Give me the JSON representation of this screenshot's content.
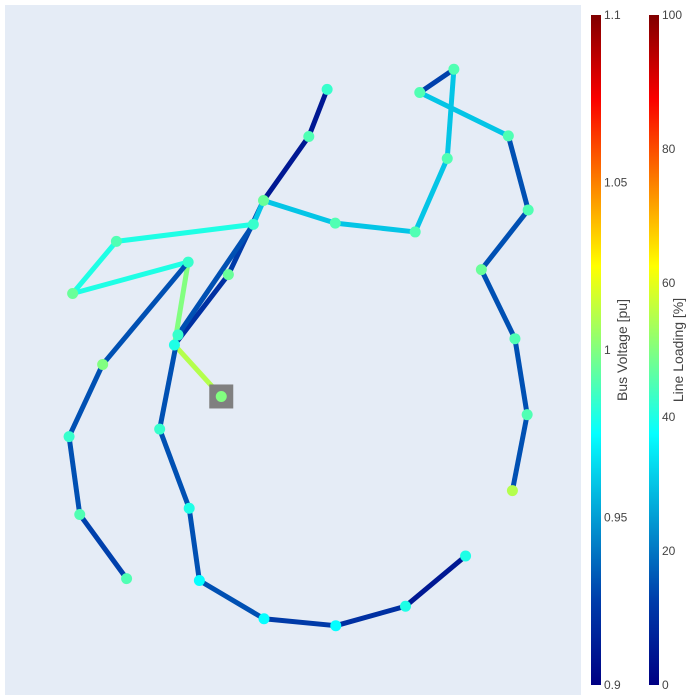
{
  "chart_data": {
    "type": "network",
    "description_free": true,
    "colorbars": [
      {
        "title": "Bus Voltage [pu]",
        "range": [
          0.9,
          1.1
        ],
        "ticks": [
          "0.9",
          "0.95",
          "1",
          "1.05",
          "1.1"
        ],
        "tick_values": [
          0.9,
          0.95,
          1.0,
          1.05,
          1.1
        ],
        "colorscale": "jet"
      },
      {
        "title": "Line Loading [%]",
        "range": [
          0,
          100
        ],
        "ticks": [
          "0",
          "20",
          "40",
          "60",
          "80",
          "100"
        ],
        "tick_values": [
          0,
          20,
          40,
          60,
          80,
          100
        ],
        "colorscale": "jet"
      }
    ],
    "x_range": [
      0,
      100
    ],
    "y_range": [
      0,
      100
    ],
    "external_grid_bus": 16,
    "buses": [
      {
        "id": 0,
        "x": 57.0,
        "y": 91.5,
        "vm": 0.985
      },
      {
        "id": 1,
        "x": 53.4,
        "y": 84.0,
        "vm": 0.99
      },
      {
        "id": 2,
        "x": 44.5,
        "y": 73.8,
        "vm": 0.995
      },
      {
        "id": 3,
        "x": 42.5,
        "y": 70.0,
        "vm": 0.985
      },
      {
        "id": 4,
        "x": 58.6,
        "y": 70.2,
        "vm": 0.99
      },
      {
        "id": 5,
        "x": 74.3,
        "y": 68.8,
        "vm": 0.99
      },
      {
        "id": 6,
        "x": 80.6,
        "y": 80.5,
        "vm": 0.99
      },
      {
        "id": 7,
        "x": 81.9,
        "y": 94.7,
        "vm": 0.99
      },
      {
        "id": 8,
        "x": 75.2,
        "y": 91.0,
        "vm": 0.99
      },
      {
        "id": 9,
        "x": 92.6,
        "y": 84.1,
        "vm": 0.99
      },
      {
        "id": 10,
        "x": 96.5,
        "y": 72.3,
        "vm": 0.99
      },
      {
        "id": 11,
        "x": 87.3,
        "y": 62.8,
        "vm": 0.995
      },
      {
        "id": 12,
        "x": 93.9,
        "y": 51.8,
        "vm": 0.99
      },
      {
        "id": 13,
        "x": 96.3,
        "y": 39.7,
        "vm": 0.99
      },
      {
        "id": 14,
        "x": 93.4,
        "y": 27.6,
        "vm": 1.01
      },
      {
        "id": 15,
        "x": 37.6,
        "y": 62.0,
        "vm": 0.995
      },
      {
        "id": 16,
        "x": 36.2,
        "y": 42.6,
        "vm": 1.0
      },
      {
        "id": 17,
        "x": 27.7,
        "y": 52.4,
        "vm": 0.985
      },
      {
        "id": 18,
        "x": 27.0,
        "y": 50.8,
        "vm": 0.98
      },
      {
        "id": 19,
        "x": 29.7,
        "y": 64.0,
        "vm": 0.985
      },
      {
        "id": 20,
        "x": 15.6,
        "y": 67.3,
        "vm": 0.99
      },
      {
        "id": 21,
        "x": 7.0,
        "y": 59.0,
        "vm": 0.995
      },
      {
        "id": 22,
        "x": 12.9,
        "y": 47.7,
        "vm": 1.0
      },
      {
        "id": 23,
        "x": 6.3,
        "y": 36.2,
        "vm": 0.985
      },
      {
        "id": 24,
        "x": 8.4,
        "y": 23.8,
        "vm": 0.99
      },
      {
        "id": 25,
        "x": 17.6,
        "y": 13.6,
        "vm": 0.99
      },
      {
        "id": 26,
        "x": 24.1,
        "y": 37.4,
        "vm": 0.985
      },
      {
        "id": 27,
        "x": 29.9,
        "y": 24.8,
        "vm": 0.98
      },
      {
        "id": 28,
        "x": 31.9,
        "y": 13.3,
        "vm": 0.975
      },
      {
        "id": 29,
        "x": 44.6,
        "y": 7.2,
        "vm": 0.975
      },
      {
        "id": 30,
        "x": 58.7,
        "y": 6.1,
        "vm": 0.975
      },
      {
        "id": 31,
        "x": 72.4,
        "y": 9.2,
        "vm": 0.98
      },
      {
        "id": 32,
        "x": 84.2,
        "y": 17.2,
        "vm": 0.98
      }
    ],
    "lines": [
      {
        "from": 0,
        "to": 1,
        "loading": 5
      },
      {
        "from": 1,
        "to": 2,
        "loading": 5
      },
      {
        "from": 2,
        "to": 15,
        "loading": 12
      },
      {
        "from": 15,
        "to": 18,
        "loading": 10
      },
      {
        "from": 18,
        "to": 16,
        "loading": 55
      },
      {
        "from": 2,
        "to": 4,
        "loading": 30
      },
      {
        "from": 4,
        "to": 5,
        "loading": 30
      },
      {
        "from": 5,
        "to": 6,
        "loading": 30
      },
      {
        "from": 6,
        "to": 7,
        "loading": 30
      },
      {
        "from": 7,
        "to": 8,
        "loading": 13
      },
      {
        "from": 8,
        "to": 9,
        "loading": 30
      },
      {
        "from": 9,
        "to": 10,
        "loading": 15
      },
      {
        "from": 10,
        "to": 11,
        "loading": 15
      },
      {
        "from": 11,
        "to": 12,
        "loading": 15
      },
      {
        "from": 12,
        "to": 13,
        "loading": 15
      },
      {
        "from": 13,
        "to": 14,
        "loading": 15
      },
      {
        "from": 3,
        "to": 2,
        "loading": 30
      },
      {
        "from": 3,
        "to": 17,
        "loading": 15
      },
      {
        "from": 17,
        "to": 26,
        "loading": 15
      },
      {
        "from": 26,
        "to": 27,
        "loading": 15
      },
      {
        "from": 27,
        "to": 28,
        "loading": 15
      },
      {
        "from": 28,
        "to": 29,
        "loading": 15
      },
      {
        "from": 29,
        "to": 30,
        "loading": 12
      },
      {
        "from": 30,
        "to": 31,
        "loading": 10
      },
      {
        "from": 31,
        "to": 32,
        "loading": 5
      },
      {
        "from": 3,
        "to": 20,
        "loading": 40
      },
      {
        "from": 20,
        "to": 21,
        "loading": 40
      },
      {
        "from": 21,
        "to": 19,
        "loading": 40
      },
      {
        "from": 19,
        "to": 18,
        "loading": 50
      },
      {
        "from": 19,
        "to": 22,
        "loading": 15
      },
      {
        "from": 22,
        "to": 23,
        "loading": 15
      },
      {
        "from": 23,
        "to": 24,
        "loading": 15
      },
      {
        "from": 24,
        "to": 25,
        "loading": 13
      }
    ]
  }
}
